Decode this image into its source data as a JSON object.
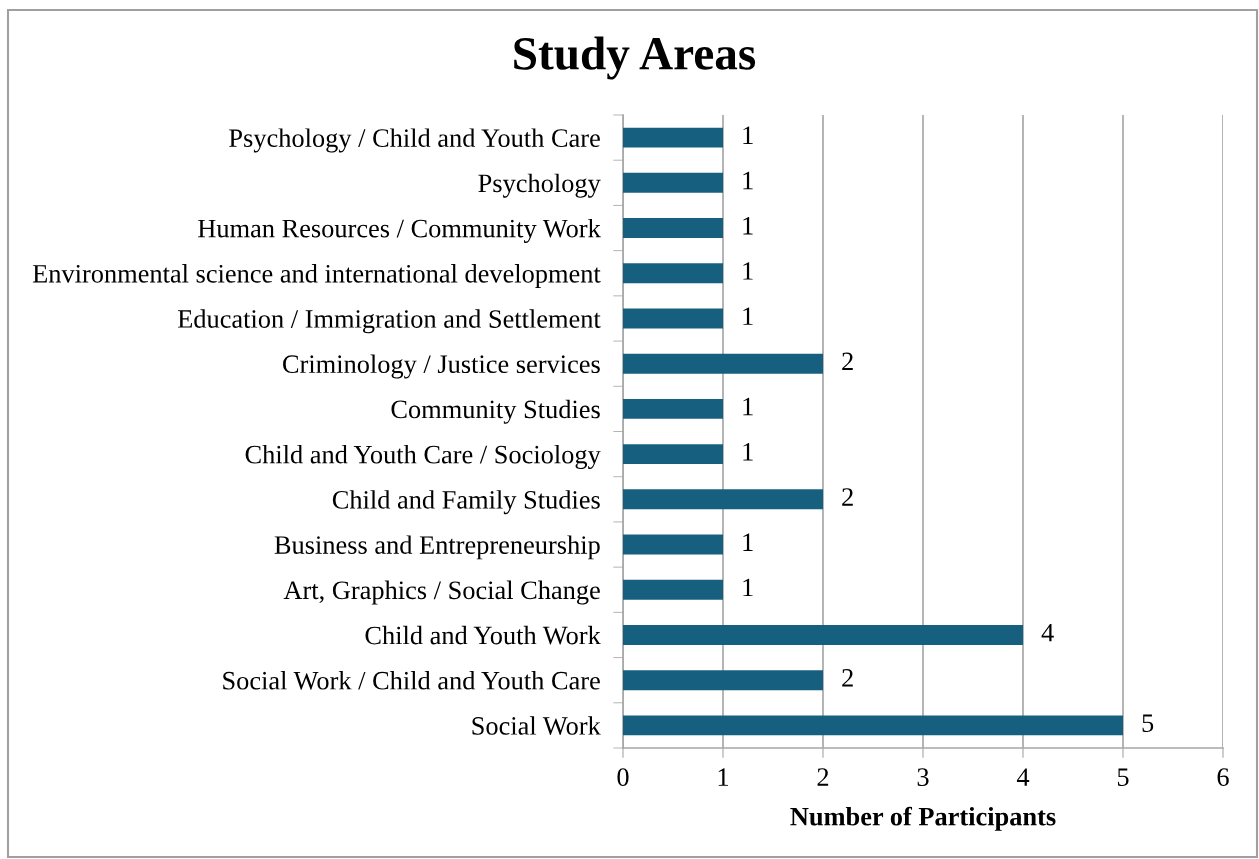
{
  "chart_data": {
    "type": "bar",
    "orientation": "horizontal",
    "title": "Study Areas",
    "xlabel": "Number of Participants",
    "categories": [
      "Psychology / Child and Youth Care",
      "Psychology",
      "Human Resources / Community Work",
      "Environmental science and international development",
      "Education / Immigration and Settlement",
      "Criminology / Justice services",
      "Community Studies",
      "Child and Youth Care / Sociology",
      "Child and Family Studies",
      "Business and Entrepreneurship",
      "Art, Graphics / Social Change",
      "Child and Youth Work",
      "Social Work / Child and Youth Care",
      "Social Work"
    ],
    "values": [
      1,
      1,
      1,
      1,
      1,
      2,
      1,
      1,
      2,
      1,
      1,
      4,
      2,
      5
    ],
    "color": "#175f7f",
    "xlim": [
      0,
      6
    ],
    "xticks": [
      0,
      1,
      2,
      3,
      4,
      5,
      6
    ],
    "grid": "x",
    "data_labels": true
  }
}
